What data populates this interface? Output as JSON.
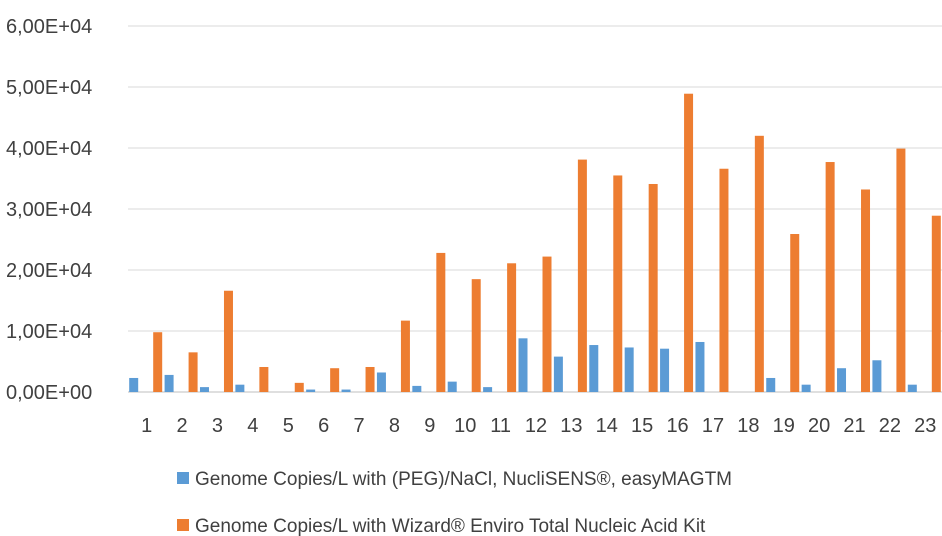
{
  "chart_data": {
    "type": "bar",
    "categories": [
      "1",
      "2",
      "3",
      "4",
      "5",
      "6",
      "7",
      "8",
      "9",
      "10",
      "11",
      "12",
      "13",
      "14",
      "15",
      "16",
      "17",
      "18",
      "19",
      "20",
      "21",
      "22",
      "23"
    ],
    "y_ticks": [
      "0,00E+00",
      "1,00E+04",
      "2,00E+04",
      "3,00E+04",
      "4,00E+04",
      "5,00E+04",
      "6,00E+04"
    ],
    "ylim": [
      0,
      60000
    ],
    "grid": true,
    "legend_position": "bottom",
    "series": [
      {
        "name": "Genome Copies/L with (PEG)/NaCl, NucliSENS®, easyMAGTM",
        "color": "#5B9BD5",
        "values": [
          2300,
          2800,
          800,
          1200,
          0,
          400,
          400,
          3200,
          1000,
          1700,
          800,
          8800,
          5800,
          7700,
          7300,
          7100,
          8200,
          0,
          2300,
          1200,
          3900,
          5200,
          1200
        ]
      },
      {
        "name": "Genome Copies/L with Wizard® Enviro Total Nucleic Acid Kit",
        "color": "#ED7D31",
        "values": [
          9800,
          6500,
          16600,
          4100,
          1500,
          3900,
          4100,
          11700,
          22800,
          18500,
          21100,
          22200,
          38100,
          35500,
          34100,
          48900,
          36600,
          42000,
          25900,
          37700,
          33200,
          39900,
          28900
        ]
      }
    ]
  }
}
